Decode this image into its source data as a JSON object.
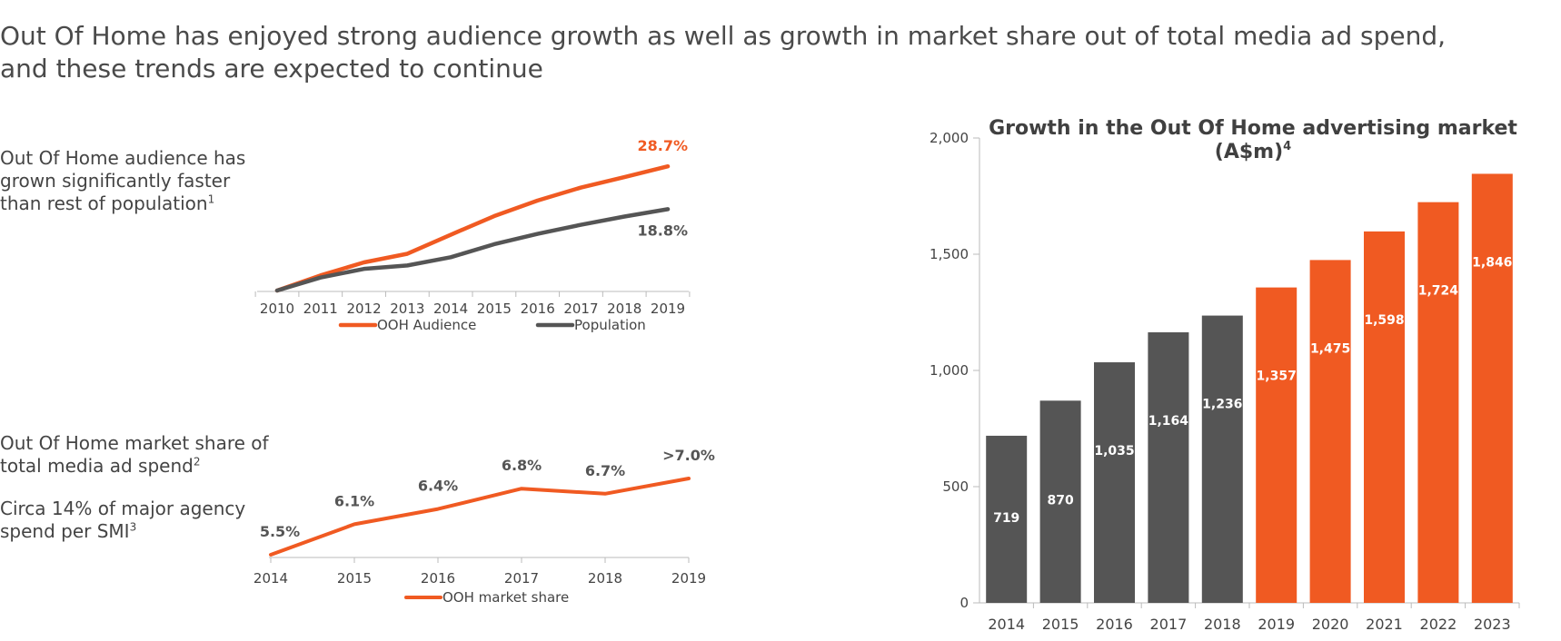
{
  "headline": {
    "line1": "Out Of Home has enjoyed strong audience growth as well as growth in market share out of total media ad spend,",
    "line2": "and these trends are expected to continue"
  },
  "notes": {
    "audience": {
      "text": "Out Of Home audience has grown significantly faster than rest of population",
      "footnote": "1"
    },
    "market_share": {
      "text": "Out Of Home market share of total media ad spend",
      "footnote": "2"
    },
    "agency": {
      "text": "Circa 14% of major agency spend per SMI",
      "footnote": "3"
    }
  },
  "colors": {
    "orange": "#f05a22",
    "grey": "#555555",
    "axis": "#bbbbbb"
  },
  "chart_data": [
    {
      "type": "line",
      "x": [
        "2010",
        "2011",
        "2012",
        "2013",
        "2014",
        "2015",
        "2016",
        "2017",
        "2018",
        "2019"
      ],
      "series": [
        {
          "name": "OOH Audience",
          "values": [
            0,
            3.5,
            6.5,
            8.5,
            12.9,
            17.2,
            20.8,
            23.8,
            26.2,
            28.7
          ],
          "end_label": "28.7%"
        },
        {
          "name": "Population",
          "values": [
            0,
            3.0,
            5.0,
            5.8,
            7.7,
            10.7,
            13.1,
            15.2,
            17.1,
            18.8
          ],
          "end_label": "18.8%"
        }
      ],
      "ylim": [
        0,
        30
      ],
      "legend": "bottom"
    },
    {
      "type": "line",
      "x": [
        "2014",
        "2015",
        "2016",
        "2017",
        "2018",
        "2019"
      ],
      "series": [
        {
          "name": "OOH market share",
          "values": [
            5.5,
            6.1,
            6.4,
            6.8,
            6.7,
            7.0
          ],
          "labels": [
            "5.5%",
            "6.1%",
            "6.4%",
            "6.8%",
            "6.7%",
            ">7.0%"
          ]
        }
      ],
      "ylim": [
        5.3,
        7.2
      ],
      "legend": "bottom"
    },
    {
      "type": "bar",
      "title": "Growth in the Out Of Home advertising market",
      "title_line2": "(A$m)",
      "title_footnote": "4",
      "categories": [
        "2014",
        "2015",
        "2016",
        "2017",
        "2018",
        "2019",
        "2020",
        "2021",
        "2022",
        "2023"
      ],
      "values": [
        719,
        870,
        1035,
        1164,
        1236,
        1357,
        1475,
        1598,
        1724,
        1846
      ],
      "value_labels": [
        "719",
        "870",
        "1,035",
        "1,164",
        "1,236",
        "1,357",
        "1,475",
        "1,598",
        "1,724",
        "1,846"
      ],
      "actual_count": 5,
      "ylim": [
        0,
        2000
      ],
      "yticks": [
        0,
        500,
        1000,
        1500,
        2000
      ],
      "ytick_labels": [
        "0",
        "500",
        "1,000",
        "1,500",
        "2,000"
      ]
    }
  ]
}
